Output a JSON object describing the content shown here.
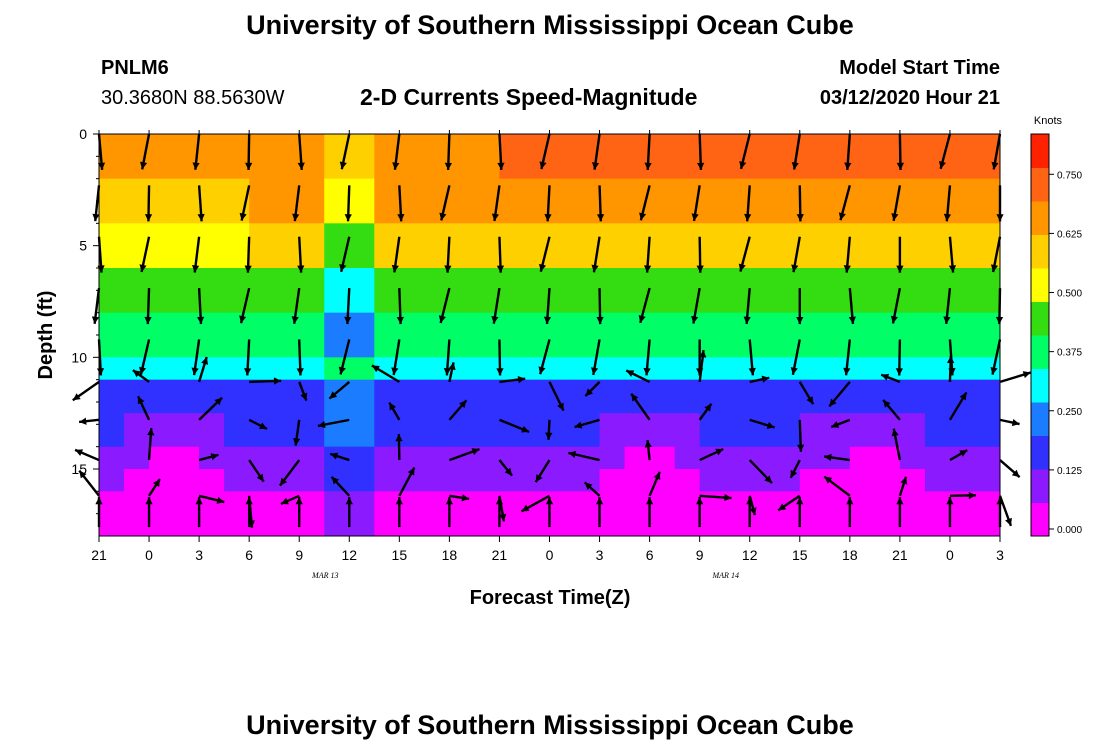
{
  "titles": {
    "top": "University of Southern Mississippi Ocean Cube",
    "bottom": "University of Southern Mississippi Ocean Cube"
  },
  "station": {
    "id": "PNLM6",
    "coords": "30.3680N 88.5630W"
  },
  "model_start": {
    "label": "Model Start Time",
    "value": "03/12/2020 Hour 21"
  },
  "colors": {
    "speed_scale": [
      "#ff00ff",
      "#8c1aff",
      "#3030ff",
      "#1c7cff",
      "#00ffff",
      "#00ff66",
      "#33dd11",
      "#ffff00",
      "#ffd000",
      "#ff9600",
      "#ff6414",
      "#ff2200"
    ],
    "arrow": "#000000"
  },
  "chart_data": {
    "type": "heatmap",
    "title": "2-D Currents Speed-Magnitude",
    "xlabel": "Forecast Time(Z)",
    "ylabel": "Depth (ft)",
    "x_range_hours": [
      0,
      54
    ],
    "y_range_ft": [
      0,
      18
    ],
    "x_ticks": [
      "21",
      "0",
      "3",
      "6",
      "9",
      "12",
      "15",
      "18",
      "21",
      "0",
      "3",
      "6",
      "9",
      "12",
      "15",
      "18",
      "21",
      "0",
      "3"
    ],
    "date_labels": [
      {
        "text": "MAR 13",
        "hour": 15
      },
      {
        "text": "MAR 14",
        "hour": 39
      }
    ],
    "y_ticks": [
      0,
      5,
      10,
      15
    ],
    "colorbar": {
      "label": "Knots",
      "ticks": [
        "0.000",
        "0.125",
        "0.250",
        "0.375",
        "0.500",
        "0.625",
        "0.750"
      ],
      "range": [
        0,
        0.85
      ]
    },
    "depth_layers_ft": [
      0,
      2,
      4,
      6,
      8,
      10,
      11,
      12.5,
      14,
      15,
      16,
      17,
      18
    ],
    "speed_profile_knots": [
      0.7,
      0.66,
      0.58,
      0.46,
      0.36,
      0.3,
      0.21,
      0.15,
      0.11,
      0.08,
      0.05,
      0.06,
      0.12
    ],
    "vector_depths_ft": [
      0,
      2.3,
      4.6,
      6.9,
      9.2,
      11.1,
      12.8,
      14.6,
      16.2,
      17.6
    ],
    "vector_hours": [
      0,
      3,
      6,
      9,
      12,
      15,
      18,
      21,
      24,
      27,
      30,
      33,
      36,
      39,
      42,
      45,
      48,
      51,
      54
    ]
  }
}
